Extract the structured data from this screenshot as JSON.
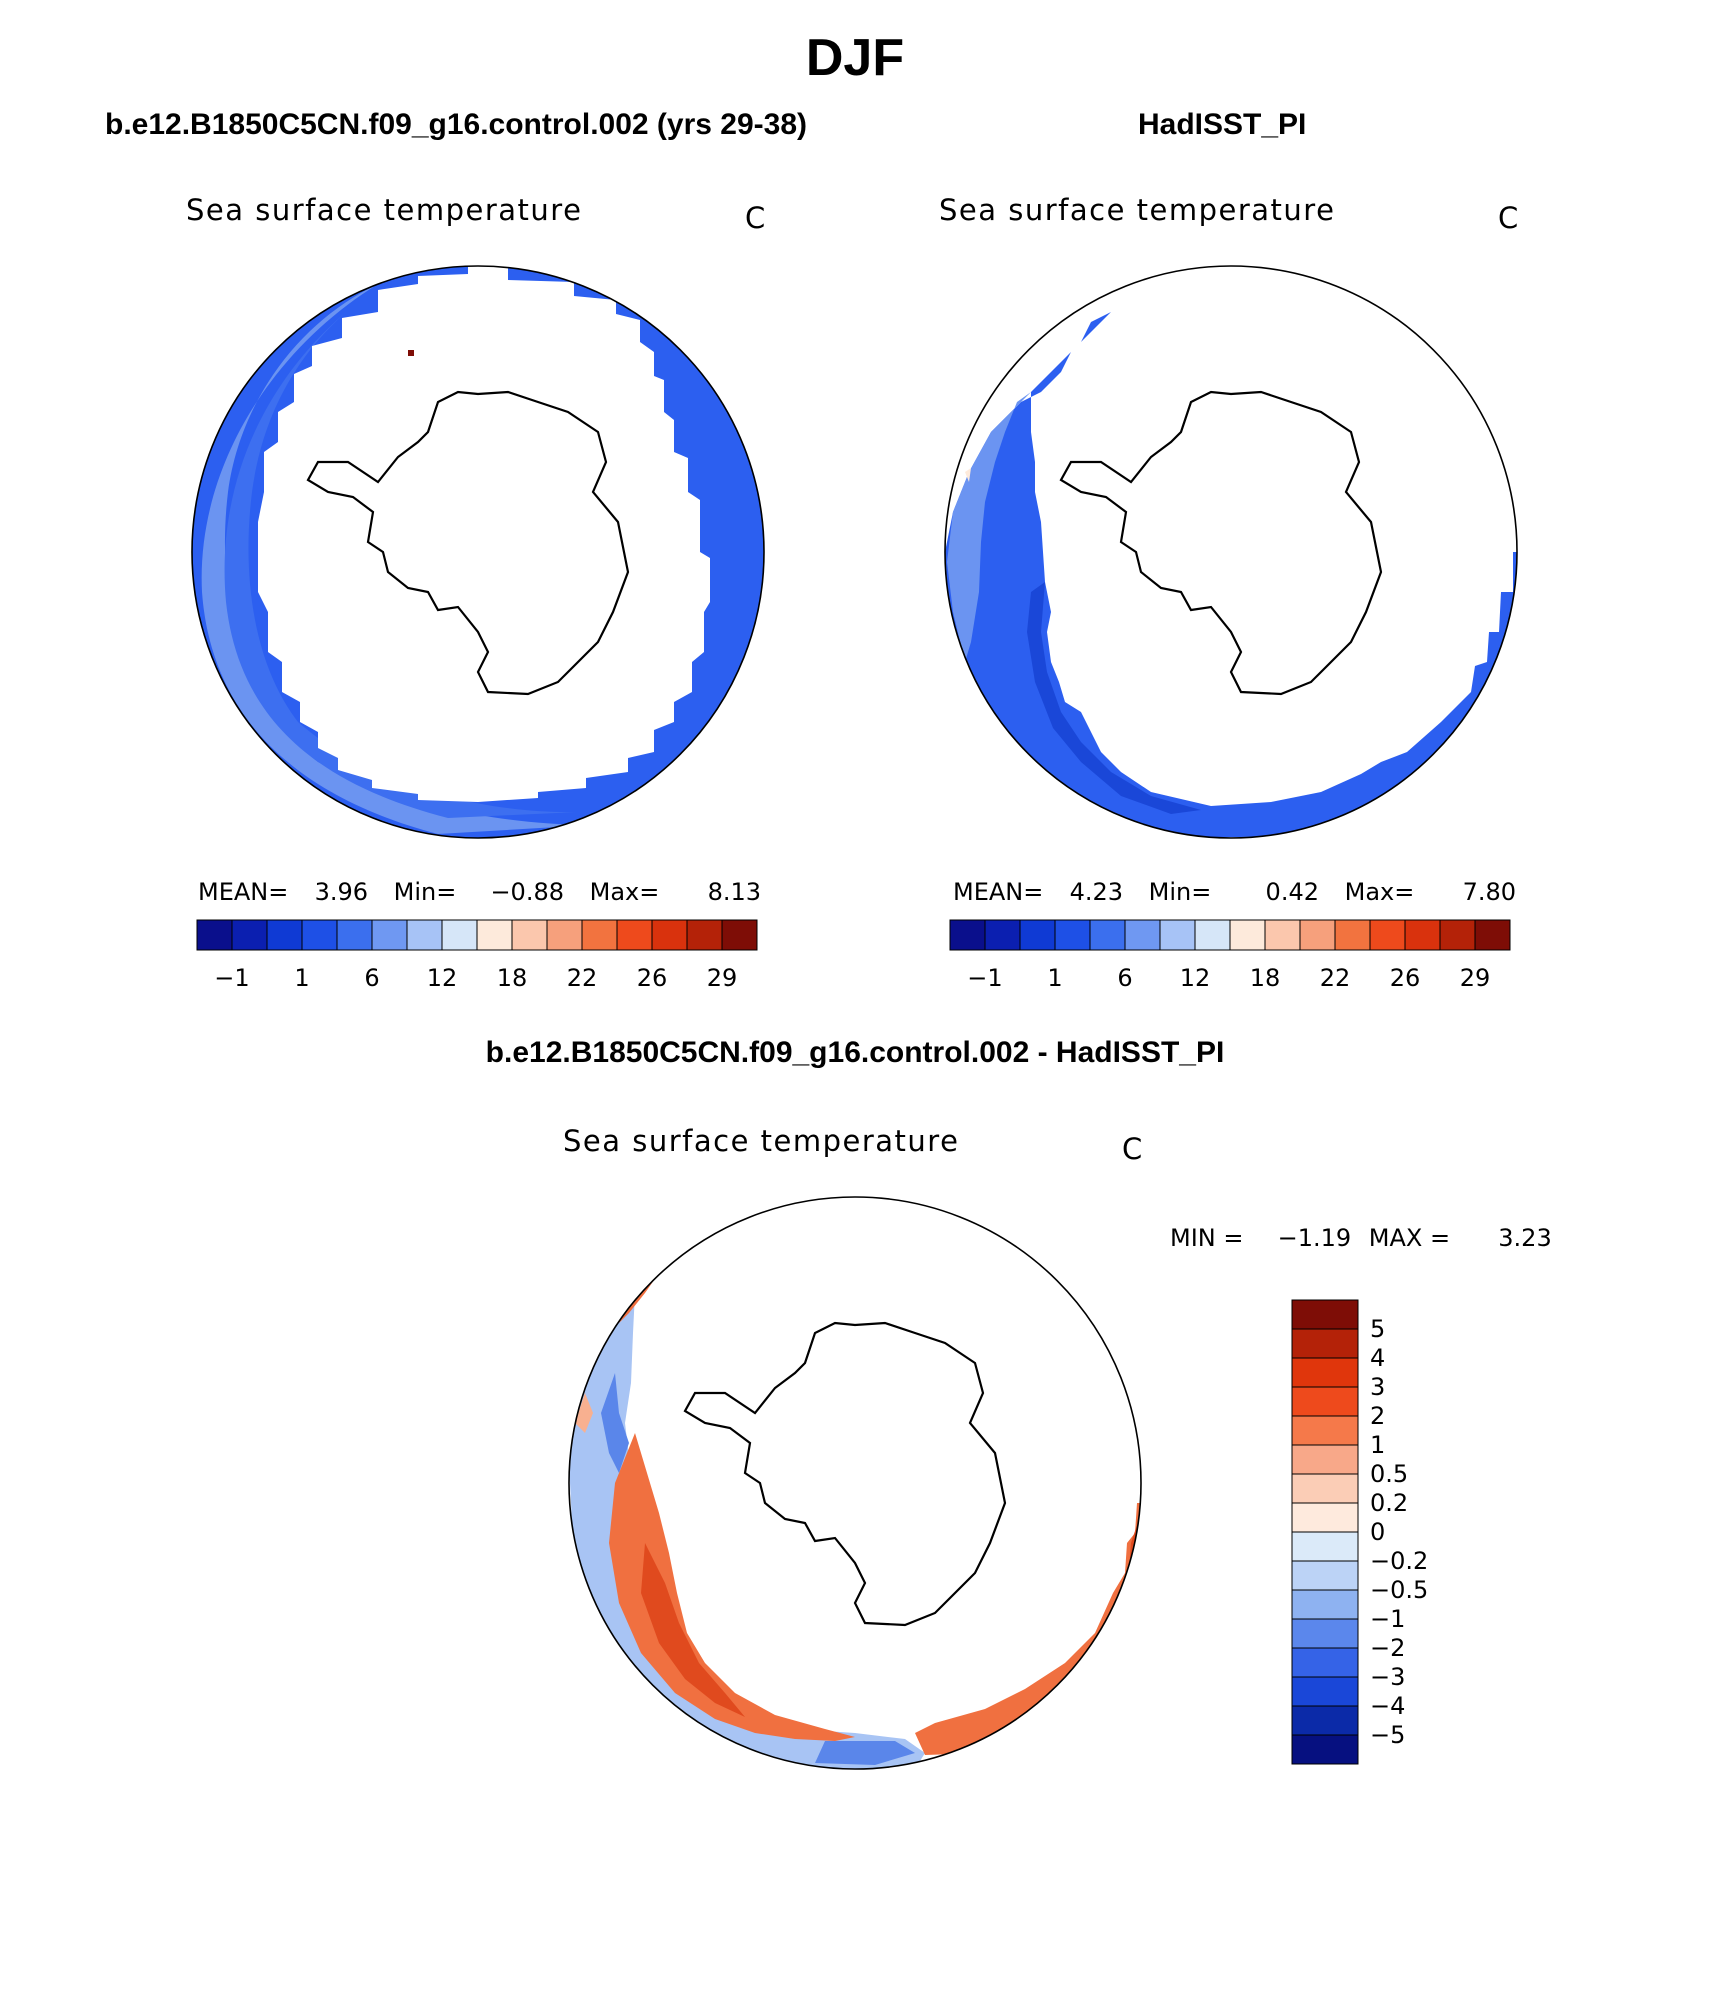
{
  "figure": {
    "season": "DJF"
  },
  "panels": [
    {
      "id": "model",
      "title": "b.e12.B1850C5CN.f09_g16.control.002 (yrs 29-38)",
      "variable": "Sea surface temperature",
      "units": "C",
      "mean_label": "MEAN=",
      "mean": "3.96",
      "min_label": "Min=",
      "min": "−0.88",
      "max_label": "Max=",
      "max": "8.13"
    },
    {
      "id": "obs",
      "title": "HadISST_PI",
      "variable": "Sea surface temperature",
      "units": "C",
      "mean_label": "MEAN=",
      "mean": "4.23",
      "min_label": "Min=",
      "min": "0.42",
      "max_label": "Max=",
      "max": "7.80"
    },
    {
      "id": "diff",
      "title": "b.e12.B1850C5CN.f09_g16.control.002 - HadISST_PI",
      "variable": "Sea surface temperature",
      "units": "C",
      "min_label": "MIN =",
      "min": "−1.19",
      "max_label": "MAX =",
      "max": "3.23"
    }
  ],
  "abs_colorbar": {
    "colors": [
      "#0a0f8c",
      "#0b1fb0",
      "#0f3ad4",
      "#1e50e6",
      "#3b6fee",
      "#6f98f2",
      "#a7c3f6",
      "#d6e6f8",
      "#fdeadb",
      "#fbc7ad",
      "#f6a07c",
      "#f2733f",
      "#ee4a1c",
      "#d9320d",
      "#b42208",
      "#7e0d06"
    ],
    "tick_labels": [
      "−1",
      "1",
      "6",
      "12",
      "18",
      "22",
      "26",
      "29"
    ]
  },
  "diff_colorbar": {
    "colors_top_to_bottom": [
      "#7e0d06",
      "#b42208",
      "#e0360c",
      "#ee4a1c",
      "#f5794a",
      "#f8a889",
      "#fbcdb6",
      "#feeadd",
      "#dbeaf9",
      "#bcd3f6",
      "#8eb2f1",
      "#5b87ec",
      "#3563e7",
      "#1a47d8",
      "#0b2aa8",
      "#061080"
    ],
    "tick_labels": [
      "5",
      "4",
      "3",
      "2",
      "1",
      "0.5",
      "0.2",
      "0",
      "−0.2",
      "−0.5",
      "−1",
      "−2",
      "−3",
      "−4",
      "−5"
    ]
  },
  "map_colors": {
    "ocean_deep": "#2c5ff0",
    "ocean_mid": "#3d6ff0",
    "ocean_light": "#6b94f1",
    "diff_warm": "#f07040",
    "diff_warm_dark": "#e04a1e",
    "diff_warm_light": "#f8b090",
    "diff_cool": "#a8c4f4",
    "diff_cool_dark": "#5a86ea"
  }
}
